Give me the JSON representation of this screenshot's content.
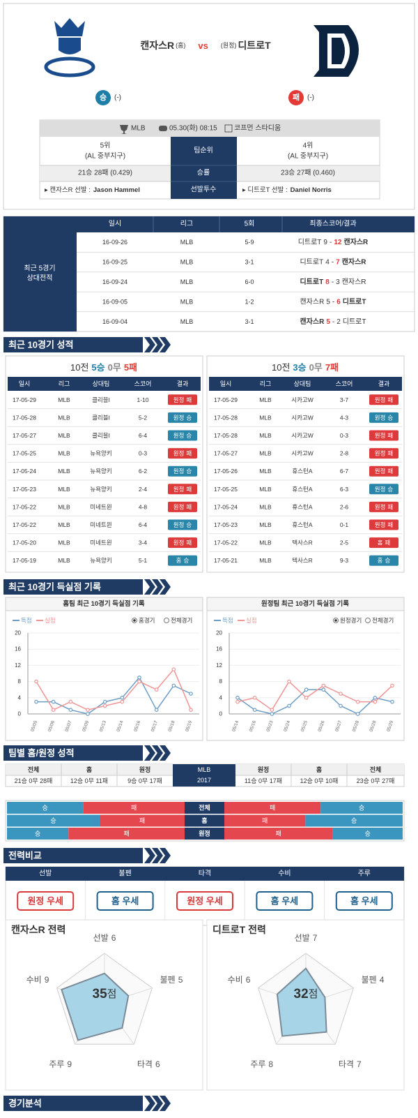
{
  "header": {
    "home_team": "캔자스R",
    "home_tag": "(홈)",
    "vs": "vs",
    "away_tag": "(원정)",
    "away_team": "디트로T",
    "home_result": "승",
    "home_result_note": "(-)",
    "away_result": "패",
    "away_result_note": "(-)"
  },
  "info": {
    "league": "MLB",
    "datetime": "05.30(화) 08:15",
    "stadium": "코프먼 스타디움",
    "rank_label": "팀순위",
    "home_rank": [
      "5위",
      "(AL 중부지구)"
    ],
    "away_rank": [
      "4위",
      "(AL 중부지구)"
    ],
    "pct_label": "승률",
    "home_pct": "21승 28패 (0.429)",
    "away_pct": "23승 27패 (0.460)",
    "pitcher_label": "선발투수",
    "home_pitcher_prefix": "▸ 캔자스R 선발 :",
    "home_pitcher": "Jason Hammel",
    "away_pitcher_prefix": "▸ 디트로T 선발 :",
    "away_pitcher": "Daniel Norris"
  },
  "h2h": {
    "label": [
      "최근 5경기",
      "상대전적"
    ],
    "headers": [
      "일시",
      "리그",
      "5회",
      "최종스코어/결과"
    ],
    "score_sep": "-",
    "win_color": "#d9383a",
    "rows": [
      {
        "date": "16-09-26",
        "league": "MLB",
        "inning5": "5-9",
        "left": "디트로T",
        "ls": 9,
        "rs": 12,
        "right": "캔자스R"
      },
      {
        "date": "16-09-25",
        "league": "MLB",
        "inning5": "3-1",
        "left": "디트로T",
        "ls": 4,
        "rs": 7,
        "right": "캔자스R"
      },
      {
        "date": "16-09-24",
        "league": "MLB",
        "inning5": "6-0",
        "left": "디트로T",
        "ls": 8,
        "rs": 3,
        "right": "캔자스R"
      },
      {
        "date": "16-09-05",
        "league": "MLB",
        "inning5": "1-2",
        "left": "캔자스R",
        "ls": 5,
        "rs": 6,
        "right": "디트로T"
      },
      {
        "date": "16-09-04",
        "league": "MLB",
        "inning5": "3-1",
        "left": "캔자스R",
        "ls": 5,
        "rs": 2,
        "right": "디트로T"
      }
    ]
  },
  "banners": [
    "최근 10경기 성적",
    "최근 10경기 득실점 기록",
    "팀별 홈/원정 성적",
    "전력비교",
    "경기분석"
  ],
  "recent": {
    "headers": [
      "일시",
      "리그",
      "상대팀",
      "스코어",
      "결과"
    ],
    "colors": {
      "승": "#2a86a8",
      "패": "#dd3b3b"
    },
    "panels": [
      {
        "title": [
          "10전",
          "5승",
          "0무",
          "5패"
        ],
        "rows": [
          {
            "date": "17-05-29",
            "league": "MLB",
            "opp": "클리블I",
            "score": "1-10",
            "venue": "원정",
            "result": "패"
          },
          {
            "date": "17-05-28",
            "league": "MLB",
            "opp": "클리블I",
            "score": "5-2",
            "venue": "원정",
            "result": "승"
          },
          {
            "date": "17-05-27",
            "league": "MLB",
            "opp": "클리블I",
            "score": "6-4",
            "venue": "원정",
            "result": "승"
          },
          {
            "date": "17-05-25",
            "league": "MLB",
            "opp": "뉴욕양키",
            "score": "0-3",
            "venue": "원정",
            "result": "패"
          },
          {
            "date": "17-05-24",
            "league": "MLB",
            "opp": "뉴욕양키",
            "score": "6-2",
            "venue": "원정",
            "result": "승"
          },
          {
            "date": "17-05-23",
            "league": "MLB",
            "opp": "뉴욕양키",
            "score": "2-4",
            "venue": "원정",
            "result": "패"
          },
          {
            "date": "17-05-22",
            "league": "MLB",
            "opp": "미네트윈",
            "score": "4-8",
            "venue": "원정",
            "result": "패"
          },
          {
            "date": "17-05-22",
            "league": "MLB",
            "opp": "미네트윈",
            "score": "6-4",
            "venue": "원정",
            "result": "승"
          },
          {
            "date": "17-05-20",
            "league": "MLB",
            "opp": "미네트윈",
            "score": "3-4",
            "venue": "원정",
            "result": "패"
          },
          {
            "date": "17-05-19",
            "league": "MLB",
            "opp": "뉴욕양키",
            "score": "5-1",
            "venue": "홈",
            "result": "승"
          }
        ]
      },
      {
        "title": [
          "10전",
          "3승",
          "0무",
          "7패"
        ],
        "rows": [
          {
            "date": "17-05-29",
            "league": "MLB",
            "opp": "시카고W",
            "score": "3-7",
            "venue": "원정",
            "result": "패"
          },
          {
            "date": "17-05-28",
            "league": "MLB",
            "opp": "시카고W",
            "score": "4-3",
            "venue": "원정",
            "result": "승"
          },
          {
            "date": "17-05-28",
            "league": "MLB",
            "opp": "시카고W",
            "score": "0-3",
            "venue": "원정",
            "result": "패"
          },
          {
            "date": "17-05-27",
            "league": "MLB",
            "opp": "시카고W",
            "score": "2-8",
            "venue": "원정",
            "result": "패"
          },
          {
            "date": "17-05-26",
            "league": "MLB",
            "opp": "휴스턴A",
            "score": "6-7",
            "venue": "원정",
            "result": "패"
          },
          {
            "date": "17-05-25",
            "league": "MLB",
            "opp": "휴스턴A",
            "score": "6-3",
            "venue": "원정",
            "result": "승"
          },
          {
            "date": "17-05-24",
            "league": "MLB",
            "opp": "휴스턴A",
            "score": "2-6",
            "venue": "원정",
            "result": "패"
          },
          {
            "date": "17-05-23",
            "league": "MLB",
            "opp": "휴스턴A",
            "score": "0-1",
            "venue": "원정",
            "result": "패"
          },
          {
            "date": "17-05-22",
            "league": "MLB",
            "opp": "텍사스R",
            "score": "2-5",
            "venue": "홈",
            "result": "패"
          },
          {
            "date": "17-05-21",
            "league": "MLB",
            "opp": "텍사스R",
            "score": "9-3",
            "venue": "홈",
            "result": "승"
          }
        ]
      }
    ]
  },
  "chart_data": [
    {
      "type": "line",
      "title": "홈팀 최근 10경기 득실점 기록",
      "options": [
        "홈경기",
        "전체경기"
      ],
      "x": [
        "05/05",
        "05/06",
        "05/07",
        "05/09",
        "05/13",
        "05/14",
        "05/16",
        "05/17",
        "05/18",
        "05/19"
      ],
      "ylim": [
        0,
        20
      ],
      "yticks": [
        0,
        4,
        8,
        12,
        16,
        20
      ],
      "grid": true,
      "series": [
        {
          "name": "득점",
          "color": "#6a9cc6",
          "values": [
            3,
            3,
            1,
            0,
            3,
            4,
            9,
            1,
            7,
            5
          ]
        },
        {
          "name": "실점",
          "color": "#f09494",
          "values": [
            8,
            1,
            3,
            1,
            2,
            3,
            8,
            6,
            11,
            1
          ]
        }
      ]
    },
    {
      "type": "line",
      "title": "원정팀 최근 10경기 득실점 기록",
      "options": [
        "원정경기",
        "전체경기"
      ],
      "x": [
        "05/14",
        "05/16",
        "05/23",
        "05/24",
        "05/25",
        "05/26",
        "05/27",
        "05/28",
        "05/28",
        "05/29"
      ],
      "ylim": [
        0,
        20
      ],
      "yticks": [
        0,
        4,
        8,
        12,
        16,
        20
      ],
      "grid": true,
      "series": [
        {
          "name": "득점",
          "color": "#6a9cc6",
          "values": [
            4,
            1,
            0,
            2,
            6,
            6,
            2,
            0,
            4,
            3
          ]
        },
        {
          "name": "실점",
          "color": "#f09494",
          "values": [
            3,
            4,
            1,
            8,
            4,
            7,
            5,
            3,
            3,
            7
          ]
        }
      ]
    },
    {
      "type": "radar",
      "title": "캔자스R 전력",
      "axes": [
        "선발",
        "불펜",
        "타격",
        "주루",
        "수비"
      ],
      "values": [
        6,
        5,
        6,
        9,
        9
      ],
      "rlim": [
        0,
        10
      ],
      "rticks": [
        5,
        10
      ],
      "score": 35,
      "score_unit": "점",
      "color": "#a8d4e8"
    },
    {
      "type": "radar",
      "title": "디트로T 전력",
      "axes": [
        "선발",
        "불펜",
        "타격",
        "주루",
        "수비"
      ],
      "values": [
        7,
        4,
        7,
        8,
        6
      ],
      "rlim": [
        0,
        10
      ],
      "rticks": [
        5,
        10
      ],
      "score": 32,
      "score_unit": "점",
      "color": "#a8d4e8"
    }
  ],
  "season": {
    "league": "MLB",
    "year": 2017,
    "home_headers": [
      "전체",
      "홈",
      "원정"
    ],
    "home_records": [
      "21승 0무 28패",
      "12승 0무 11패",
      "9승 0무 17패"
    ],
    "away_headers": [
      "원정",
      "홈",
      "전체"
    ],
    "away_records": [
      "11승 0무 17패",
      "12승 0무 10패",
      "23승 0무 27패"
    ],
    "bars": {
      "win_label": "승",
      "loss_label": "패",
      "win_color": "#3a95bf",
      "loss_color": "#e5474f",
      "rows": [
        {
          "label": "전체",
          "home": {
            "wins": 21,
            "losses": 28
          },
          "away": {
            "wins": 23,
            "losses": 27
          }
        },
        {
          "label": "홈",
          "home": {
            "wins": 12,
            "losses": 11
          },
          "away": {
            "wins": 12,
            "losses": 10
          }
        },
        {
          "label": "원정",
          "home": {
            "wins": 9,
            "losses": 17
          },
          "away": {
            "wins": 11,
            "losses": 17
          }
        }
      ]
    }
  },
  "compare": {
    "items": [
      {
        "label": "선발",
        "verdict": "원정 우세",
        "color": "#d9383a"
      },
      {
        "label": "불펜",
        "verdict": "홈 우세",
        "color": "#1f5f8c"
      },
      {
        "label": "타격",
        "verdict": "원정 우세",
        "color": "#d9383a"
      },
      {
        "label": "수비",
        "verdict": "홈 우세",
        "color": "#1f5f8c"
      },
      {
        "label": "주루",
        "verdict": "홈 우세",
        "color": "#1f5f8c"
      }
    ]
  }
}
